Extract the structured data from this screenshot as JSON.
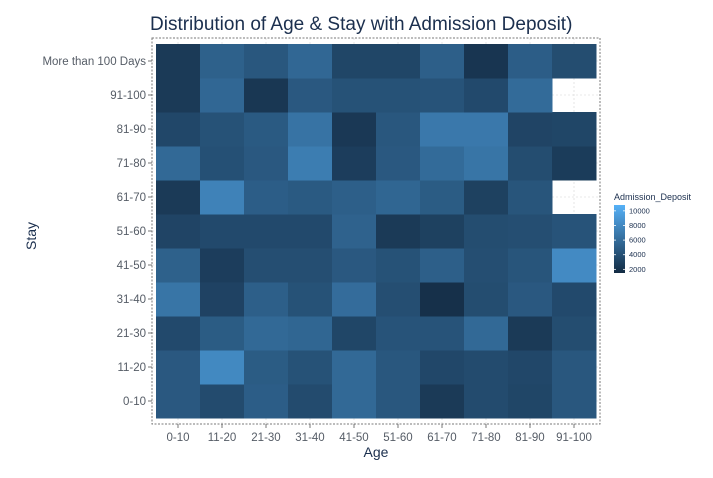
{
  "chart_data": {
    "type": "heatmap",
    "title": "Distribution of Age & Stay with Admission Deposit)",
    "xlabel": "Age",
    "ylabel": "Stay",
    "x_categories": [
      "0-10",
      "11-20",
      "21-30",
      "31-40",
      "41-50",
      "51-60",
      "61-70",
      "71-80",
      "81-90",
      "91-100"
    ],
    "y_categories": [
      "0-10",
      "11-20",
      "21-30",
      "31-40",
      "41-50",
      "51-60",
      "61-70",
      "71-80",
      "81-90",
      "91-100",
      "More than 100 Days"
    ],
    "values": [
      [
        4700,
        3900,
        5000,
        3900,
        5700,
        4600,
        2900,
        3900,
        3600,
        4600
      ],
      [
        4700,
        7600,
        4900,
        4300,
        5700,
        4600,
        3700,
        3900,
        3700,
        4600
      ],
      [
        3800,
        4900,
        5700,
        5500,
        3600,
        4400,
        4400,
        5700,
        2900,
        4000
      ],
      [
        6400,
        3400,
        5100,
        4300,
        5900,
        4100,
        2300,
        4000,
        4700,
        3800
      ],
      [
        5200,
        3100,
        4100,
        4100,
        4700,
        4300,
        5100,
        4100,
        4500,
        7700
      ],
      [
        3500,
        3800,
        3800,
        3800,
        5300,
        2900,
        3300,
        4000,
        4100,
        4400
      ],
      [
        2900,
        7200,
        5000,
        4800,
        5100,
        5500,
        4900,
        3300,
        4500,
        null
      ],
      [
        5700,
        4200,
        4700,
        6900,
        3100,
        4700,
        5800,
        6400,
        4000,
        3000
      ],
      [
        3700,
        4300,
        4800,
        6300,
        2800,
        4600,
        6600,
        6600,
        3500,
        3600
      ],
      [
        2900,
        5600,
        2700,
        4700,
        4300,
        4300,
        4400,
        3800,
        5800,
        null
      ],
      [
        2900,
        5200,
        4600,
        5600,
        3600,
        3600,
        5100,
        2600,
        5000,
        4000
      ]
    ],
    "color_scale": {
      "min": 2000,
      "max": 10000,
      "low_color": "#132B43",
      "high_color": "#56B1F7"
    },
    "missing_color": "#ffffff",
    "grid": true,
    "legend": {
      "title": "Admission_Deposit",
      "placement": "right",
      "ticks": [
        10000,
        8000,
        6000,
        4000,
        2000
      ]
    }
  }
}
